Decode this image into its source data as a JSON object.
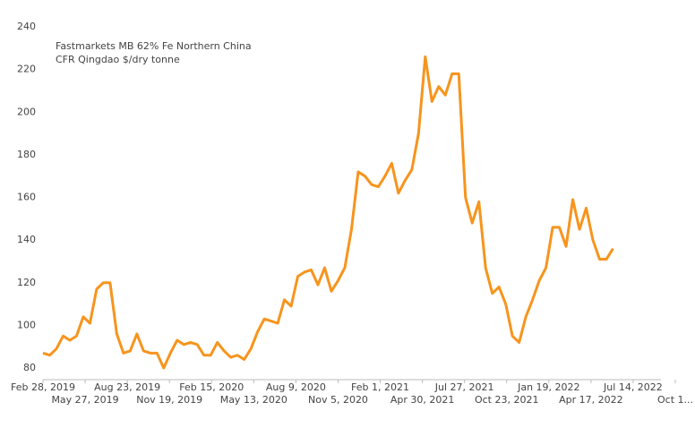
{
  "chart_data": {
    "type": "line",
    "title": [
      "Fastmarkets MB 62% Fe Northern China",
      "CFR Qingdao $/dry tonne"
    ],
    "x": [
      "2019-02-28",
      "2019-03-14",
      "2019-03-28",
      "2019-04-11",
      "2019-04-25",
      "2019-05-09",
      "2019-05-23",
      "2019-06-06",
      "2019-06-20",
      "2019-07-04",
      "2019-07-18",
      "2019-08-01",
      "2019-08-15",
      "2019-08-29",
      "2019-09-12",
      "2019-09-26",
      "2019-10-10",
      "2019-10-24",
      "2019-11-07",
      "2019-11-21",
      "2019-12-05",
      "2019-12-19",
      "2020-01-02",
      "2020-01-16",
      "2020-01-30",
      "2020-02-13",
      "2020-02-27",
      "2020-03-12",
      "2020-03-26",
      "2020-04-09",
      "2020-04-23",
      "2020-05-07",
      "2020-05-21",
      "2020-06-04",
      "2020-06-18",
      "2020-07-02",
      "2020-07-16",
      "2020-07-30",
      "2020-08-13",
      "2020-08-27",
      "2020-09-10",
      "2020-09-24",
      "2020-10-08",
      "2020-10-22",
      "2020-11-05",
      "2020-11-19",
      "2020-12-03",
      "2020-12-17",
      "2020-12-31",
      "2021-01-14",
      "2021-01-28",
      "2021-02-11",
      "2021-02-25",
      "2021-03-11",
      "2021-03-25",
      "2021-04-08",
      "2021-04-22",
      "2021-05-06",
      "2021-05-20",
      "2021-06-03",
      "2021-06-17",
      "2021-07-01",
      "2021-07-15",
      "2021-07-29",
      "2021-08-12",
      "2021-08-26",
      "2021-09-09",
      "2021-09-23",
      "2021-10-07",
      "2021-10-21",
      "2021-11-04",
      "2021-11-18",
      "2021-12-02",
      "2021-12-16",
      "2021-12-30",
      "2022-01-13",
      "2022-01-27",
      "2022-02-10",
      "2022-02-24",
      "2022-03-10",
      "2022-03-24",
      "2022-04-07",
      "2022-04-21",
      "2022-05-05",
      "2022-05-19",
      "2022-06-02"
    ],
    "series": [
      {
        "color": "#f7941d",
        "values": [
          87,
          86,
          89,
          95,
          93,
          95,
          104,
          101,
          117,
          120,
          120,
          96,
          87,
          88,
          96,
          88,
          87,
          87,
          80,
          87,
          93,
          91,
          92,
          91,
          86,
          86,
          92,
          88,
          85,
          86,
          84,
          89,
          97,
          103,
          102,
          101,
          112,
          109,
          123,
          125,
          126,
          119,
          127,
          116,
          121,
          127,
          145,
          172,
          170,
          166,
          165,
          170,
          176,
          162,
          168,
          173,
          190,
          226,
          205,
          212,
          208,
          218,
          218,
          160,
          148,
          158,
          127,
          115,
          118,
          110,
          95,
          92,
          104,
          112,
          121,
          127,
          146,
          146,
          137,
          159,
          145,
          155,
          140,
          131,
          131,
          136
        ]
      }
    ],
    "xlim": [
      "2019-02-28",
      "2022-10-10"
    ],
    "xticks": [
      {
        "value": "2019-02-28",
        "label": "Feb 28, 2019"
      },
      {
        "value": "2019-05-27",
        "label": "May 27, 2019"
      },
      {
        "value": "2019-08-23",
        "label": "Aug 23, 2019"
      },
      {
        "value": "2019-11-19",
        "label": "Nov 19, 2019"
      },
      {
        "value": "2020-02-15",
        "label": "Feb 15, 2020"
      },
      {
        "value": "2020-05-13",
        "label": "May 13, 2020"
      },
      {
        "value": "2020-08-09",
        "label": "Aug 9, 2020"
      },
      {
        "value": "2020-11-05",
        "label": "Nov 5, 2020"
      },
      {
        "value": "2021-02-01",
        "label": "Feb 1, 2021"
      },
      {
        "value": "2021-04-30",
        "label": "Apr 30, 2021"
      },
      {
        "value": "2021-07-27",
        "label": "Jul 27, 2021"
      },
      {
        "value": "2021-10-23",
        "label": "Oct 23, 2021"
      },
      {
        "value": "2022-01-19",
        "label": "Jan 19, 2022"
      },
      {
        "value": "2022-04-17",
        "label": "Apr 17, 2022"
      },
      {
        "value": "2022-07-14",
        "label": "Jul 14, 2022"
      },
      {
        "value": "2022-10-10",
        "label": "Oct 1..."
      }
    ],
    "ylim": [
      80,
      240
    ],
    "yticks": [
      80,
      100,
      120,
      140,
      160,
      180,
      200,
      220,
      240
    ],
    "grid": false
  }
}
